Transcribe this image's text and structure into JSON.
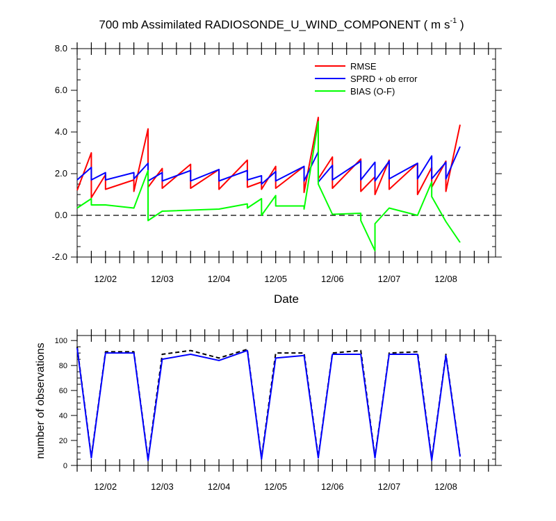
{
  "chart_data": [
    {
      "type": "line",
      "title_main": "700 mb Assimilated RADIOSONDE_U_WIND_COMPONENT ( m s",
      "title_sup": "-1",
      "title_close": " )",
      "xlabel": "Date",
      "ylabel": "",
      "ylim": [
        -2.0,
        8.0
      ],
      "xlim": [
        0,
        7.375
      ],
      "yticks": [
        "-2.0",
        "0.0",
        "2.0",
        "4.0",
        "6.0",
        "8.0"
      ],
      "ytick_values": [
        -2,
        0,
        2,
        4,
        6,
        8
      ],
      "xtick_labels": [
        "12/02",
        "12/03",
        "12/04",
        "12/05",
        "12/06",
        "12/07",
        "12/08"
      ],
      "xtick_values": [
        0.5,
        1.5,
        2.5,
        3.5,
        4.5,
        5.5,
        6.5
      ],
      "zero_line": "dashed",
      "legend_placement": "top-right",
      "series": [
        {
          "name": "RMSE",
          "color": "#ff0000",
          "points": [
            [
              0,
              1.2
            ],
            [
              0.25,
              3.0
            ],
            [
              0.25,
              0.85
            ],
            [
              0.5,
              1.95
            ],
            [
              0.5,
              1.25
            ],
            [
              1.0,
              1.7
            ],
            [
              1.0,
              1.15
            ],
            [
              1.25,
              4.15
            ],
            [
              1.25,
              1.35
            ],
            [
              1.5,
              2.25
            ],
            [
              1.5,
              1.3
            ],
            [
              2.0,
              2.45
            ],
            [
              2.0,
              1.3
            ],
            [
              2.5,
              2.2
            ],
            [
              2.5,
              1.25
            ],
            [
              3.0,
              2.65
            ],
            [
              3.0,
              1.35
            ],
            [
              3.25,
              1.6
            ],
            [
              3.25,
              1.25
            ],
            [
              3.5,
              2.35
            ],
            [
              3.5,
              1.3
            ],
            [
              4.0,
              2.35
            ],
            [
              4.0,
              1.1
            ],
            [
              4.25,
              4.7
            ],
            [
              4.25,
              1.75
            ],
            [
              4.5,
              2.8
            ],
            [
              4.5,
              1.3
            ],
            [
              5.0,
              2.7
            ],
            [
              5.0,
              1.15
            ],
            [
              5.25,
              1.85
            ],
            [
              5.25,
              1.0
            ],
            [
              5.5,
              2.65
            ],
            [
              5.5,
              1.25
            ],
            [
              6.0,
              2.5
            ],
            [
              6.0,
              1.0
            ],
            [
              6.25,
              2.3
            ],
            [
              6.25,
              1.35
            ],
            [
              6.5,
              2.6
            ],
            [
              6.5,
              1.15
            ],
            [
              6.75,
              4.35
            ]
          ]
        },
        {
          "name": "SPRD + ob error",
          "color": "#0000ff",
          "points": [
            [
              0,
              1.7
            ],
            [
              0.25,
              2.3
            ],
            [
              0.25,
              1.7
            ],
            [
              0.5,
              2.05
            ],
            [
              0.5,
              1.7
            ],
            [
              1.0,
              2.05
            ],
            [
              1.0,
              1.75
            ],
            [
              1.25,
              2.5
            ],
            [
              1.25,
              1.65
            ],
            [
              1.5,
              2.05
            ],
            [
              1.5,
              1.65
            ],
            [
              2.0,
              2.15
            ],
            [
              2.0,
              1.65
            ],
            [
              2.5,
              2.2
            ],
            [
              2.5,
              1.65
            ],
            [
              3.0,
              2.15
            ],
            [
              3.0,
              1.7
            ],
            [
              3.25,
              1.9
            ],
            [
              3.25,
              1.5
            ],
            [
              3.5,
              2.1
            ],
            [
              3.5,
              1.65
            ],
            [
              4.0,
              2.35
            ],
            [
              4.0,
              1.65
            ],
            [
              4.25,
              3.05
            ],
            [
              4.25,
              1.6
            ],
            [
              4.5,
              2.4
            ],
            [
              4.5,
              1.7
            ],
            [
              5.0,
              2.6
            ],
            [
              5.0,
              1.7
            ],
            [
              5.25,
              2.55
            ],
            [
              5.25,
              1.65
            ],
            [
              5.5,
              2.6
            ],
            [
              5.5,
              1.75
            ],
            [
              6.0,
              2.5
            ],
            [
              6.0,
              1.75
            ],
            [
              6.25,
              2.85
            ],
            [
              6.25,
              1.75
            ],
            [
              6.5,
              2.55
            ],
            [
              6.5,
              1.75
            ],
            [
              6.75,
              3.3
            ]
          ]
        },
        {
          "name": "BIAS (O-F)",
          "color": "#00ff00",
          "points": [
            [
              0,
              0.35
            ],
            [
              0.25,
              0.8
            ],
            [
              0.25,
              0.5
            ],
            [
              0.5,
              0.5
            ],
            [
              1.0,
              0.35
            ],
            [
              1.25,
              2.15
            ],
            [
              1.25,
              -0.25
            ],
            [
              1.5,
              0.2
            ],
            [
              2.5,
              0.3
            ],
            [
              3.0,
              0.55
            ],
            [
              3.0,
              0.35
            ],
            [
              3.25,
              0.8
            ],
            [
              3.25,
              0.0
            ],
            [
              3.5,
              0.95
            ],
            [
              3.5,
              0.45
            ],
            [
              4.0,
              0.45
            ],
            [
              4.0,
              0.3
            ],
            [
              4.25,
              4.5
            ],
            [
              4.25,
              1.5
            ],
            [
              4.5,
              0.05
            ],
            [
              5.0,
              0.1
            ],
            [
              5.0,
              -0.25
            ],
            [
              5.25,
              -1.7
            ],
            [
              5.25,
              -0.4
            ],
            [
              5.5,
              0.35
            ],
            [
              6.0,
              0.0
            ],
            [
              6.25,
              1.6
            ],
            [
              6.25,
              0.9
            ],
            [
              6.5,
              -0.3
            ],
            [
              6.75,
              -1.3
            ]
          ]
        }
      ]
    },
    {
      "type": "line",
      "title": "",
      "xlabel": "",
      "ylabel": "number of observations",
      "ylim": [
        0,
        104
      ],
      "xlim": [
        0,
        7.375
      ],
      "yticks": [
        "0",
        "20",
        "40",
        "60",
        "80",
        "100"
      ],
      "ytick_values": [
        0,
        20,
        40,
        60,
        80,
        100
      ],
      "xtick_labels": [
        "12/02",
        "12/03",
        "12/04",
        "12/05",
        "12/06",
        "12/07",
        "12/08"
      ],
      "xtick_values": [
        0.5,
        1.5,
        2.5,
        3.5,
        4.5,
        5.5,
        6.5
      ],
      "series": [
        {
          "style": "dashed",
          "color": "#000000",
          "points": [
            [
              0,
              95
            ],
            [
              0.25,
              7
            ],
            [
              0.5,
              91
            ],
            [
              1.0,
              91
            ],
            [
              1.25,
              5
            ],
            [
              1.5,
              89
            ],
            [
              2.0,
              92
            ],
            [
              2.5,
              86
            ],
            [
              3.0,
              93
            ],
            [
              3.25,
              6
            ],
            [
              3.5,
              90
            ],
            [
              4.0,
              90
            ],
            [
              4.25,
              7
            ],
            [
              4.5,
              90
            ],
            [
              5.0,
              92
            ],
            [
              5.25,
              7
            ],
            [
              5.5,
              90
            ],
            [
              6.0,
              91
            ],
            [
              6.25,
              5
            ],
            [
              6.5,
              89
            ],
            [
              6.75,
              8
            ]
          ]
        },
        {
          "style": "solid",
          "color": "#0000ff",
          "points": [
            [
              0,
              94
            ],
            [
              0.25,
              6
            ],
            [
              0.5,
              90
            ],
            [
              1.0,
              90
            ],
            [
              1.25,
              4
            ],
            [
              1.5,
              85
            ],
            [
              2.0,
              89
            ],
            [
              2.5,
              84
            ],
            [
              3.0,
              92
            ],
            [
              3.25,
              5
            ],
            [
              3.5,
              86
            ],
            [
              4.0,
              88
            ],
            [
              4.25,
              6
            ],
            [
              4.5,
              89
            ],
            [
              5.0,
              89
            ],
            [
              5.25,
              6
            ],
            [
              5.5,
              89
            ],
            [
              6.0,
              89
            ],
            [
              6.25,
              4
            ],
            [
              6.5,
              88
            ],
            [
              6.75,
              7
            ]
          ]
        }
      ]
    }
  ]
}
